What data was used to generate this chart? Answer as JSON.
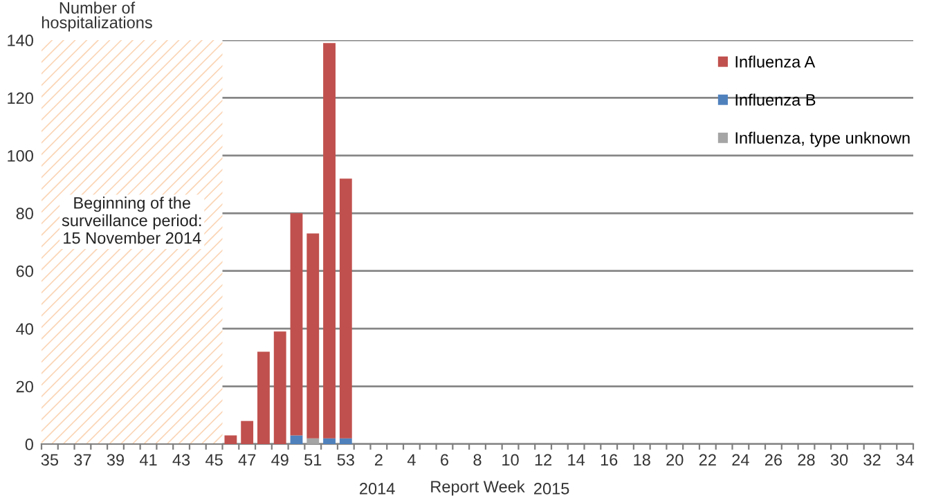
{
  "chart_data": {
    "type": "bar",
    "stacked": true,
    "ylabel": "Number of\nhospitalizations",
    "xlabel": "Report Week",
    "categories": [
      "35",
      null,
      "37",
      null,
      "39",
      null,
      "41",
      null,
      "43",
      null,
      "45",
      null,
      "47",
      null,
      "49",
      null,
      "51",
      null,
      "53",
      null,
      "2",
      null,
      "4",
      null,
      "6",
      null,
      "8",
      null,
      "10",
      null,
      "12",
      null,
      "14",
      null,
      "16",
      null,
      "18",
      null,
      "20",
      null,
      "22",
      null,
      "24",
      null,
      "26",
      null,
      "28",
      null,
      "30",
      null,
      "32",
      null,
      "34"
    ],
    "series": [
      {
        "name": "Influenza B",
        "color": "#4f81bd",
        "values": [
          0,
          0,
          0,
          0,
          0,
          0,
          0,
          0,
          0,
          0,
          0,
          0,
          0,
          0,
          0,
          3,
          0,
          2,
          2,
          0,
          0,
          0,
          0,
          0,
          0,
          0,
          0,
          0,
          0,
          0,
          0,
          0,
          0,
          0,
          0,
          0,
          0,
          0,
          0,
          0,
          0,
          0,
          0,
          0,
          0,
          0,
          0,
          0,
          0,
          0,
          0,
          0,
          0
        ]
      },
      {
        "name": "Influenza, type unknown",
        "color": "#a5a5a5",
        "values": [
          0,
          0,
          0,
          0,
          0,
          0,
          0,
          0,
          0,
          0,
          0,
          0,
          0,
          0,
          0,
          0,
          2,
          0,
          0,
          0,
          0,
          0,
          0,
          0,
          0,
          0,
          0,
          0,
          0,
          0,
          0,
          0,
          0,
          0,
          0,
          0,
          0,
          0,
          0,
          0,
          0,
          0,
          0,
          0,
          0,
          0,
          0,
          0,
          0,
          0,
          0,
          0,
          0
        ]
      },
      {
        "name": "Influenza A",
        "color": "#c0504d",
        "values": [
          0,
          0,
          0,
          0,
          0,
          0,
          0,
          0,
          0,
          0,
          0,
          3,
          8,
          32,
          39,
          77,
          71,
          137,
          90,
          0,
          0,
          0,
          0,
          0,
          0,
          0,
          0,
          0,
          0,
          0,
          0,
          0,
          0,
          0,
          0,
          0,
          0,
          0,
          0,
          0,
          0,
          0,
          0,
          0,
          0,
          0,
          0,
          0,
          0,
          0,
          0,
          0,
          0
        ]
      }
    ],
    "ylim": [
      0,
      140
    ],
    "yticks": [
      0,
      20,
      40,
      60,
      80,
      100,
      120,
      140
    ],
    "grid": "y",
    "legend": "top right",
    "bands": [
      {
        "axis": "x",
        "from": "35",
        "to": "45",
        "label": "Beginning of the\nsurveillance period:\n15 November 2014",
        "color": "#fbd5b5"
      }
    ],
    "annotations": [
      "2014",
      "2015"
    ]
  }
}
